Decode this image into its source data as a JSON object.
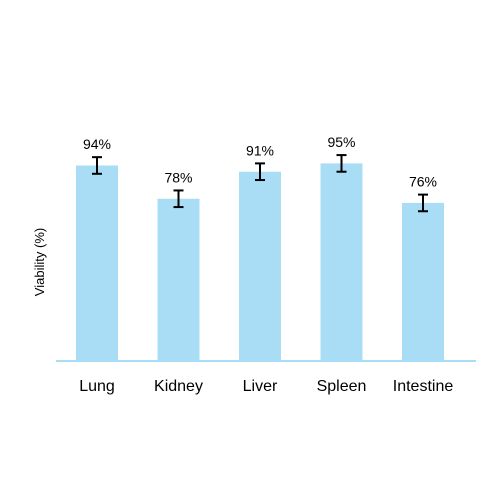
{
  "chart_data": {
    "type": "bar",
    "title": "",
    "xlabel": "",
    "ylabel": "Viability (%)",
    "categories": [
      "Lung",
      "Kidney",
      "Liver",
      "Spleen",
      "Intestine"
    ],
    "values": [
      94,
      78,
      91,
      95,
      76
    ],
    "errors": [
      4,
      4,
      4,
      4,
      4
    ],
    "data_labels": [
      "94%",
      "78%",
      "91%",
      "95%",
      "76%"
    ],
    "ylim": [
      0,
      100
    ],
    "grid": false,
    "legend": "none",
    "bar_color": "#a8ddf5",
    "axis_color": "#a8ddf5",
    "error_color": "#000000"
  }
}
